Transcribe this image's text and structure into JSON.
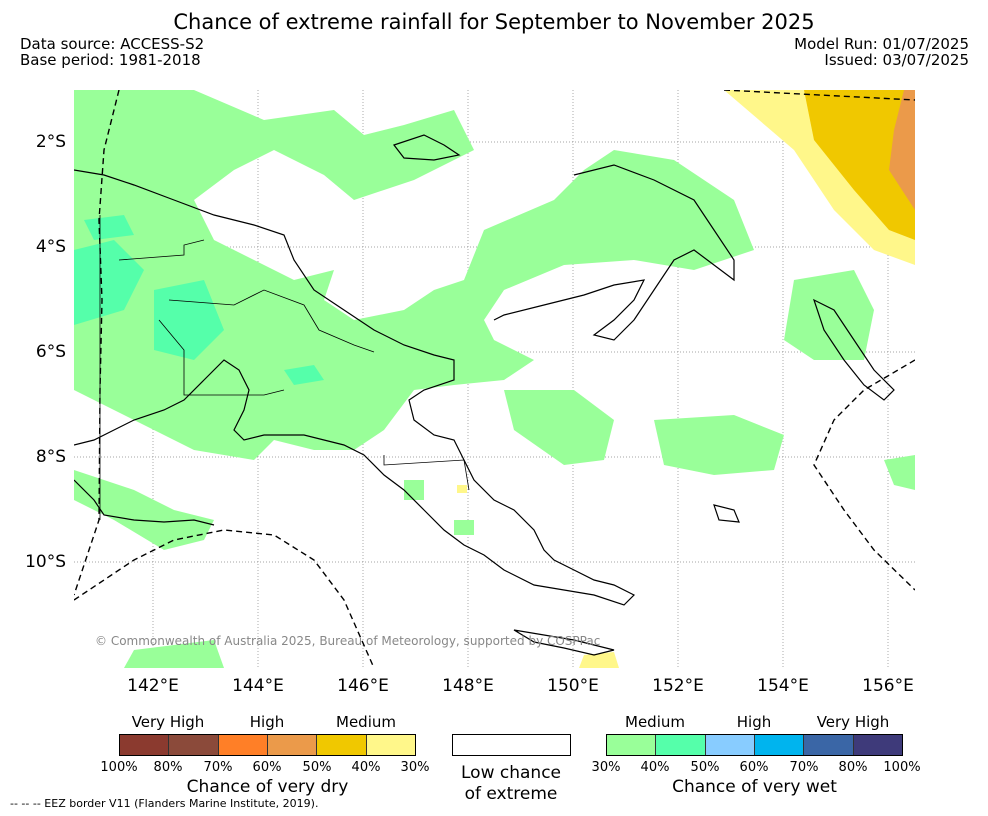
{
  "title": "Chance of extreme rainfall for September to November 2025",
  "data_source": "Data source: ACCESS-S2",
  "base_period": "Base period: 1981-2018",
  "model_run": "Model Run: 01/07/2025",
  "issued": "Issued: 03/07/2025",
  "copyright": "© Commonwealth of Australia 2025, Bureau of Meteorology, supported by COSPPac",
  "lat_labels": [
    "2°S",
    "4°S",
    "6°S",
    "8°S",
    "10°S"
  ],
  "lon_labels": [
    "142°E",
    "144°E",
    "146°E",
    "148°E",
    "150°E",
    "152°E",
    "154°E",
    "156°E"
  ],
  "legend": {
    "dry": {
      "group_labels": [
        "Very High",
        "High",
        "Medium"
      ],
      "colors": [
        "#8b3a2f",
        "#8b4a3a",
        "#ff7f27",
        "#eb9a4a",
        "#f0c800",
        "#fff78a"
      ],
      "ticks": [
        "100%",
        "80%",
        "70%",
        "60%",
        "50%",
        "40%",
        "30%"
      ],
      "title": "Chance of very dry"
    },
    "low": {
      "line1": "Low chance",
      "line2": "of extreme"
    },
    "wet": {
      "group_labels": [
        "Medium",
        "High",
        "Very High"
      ],
      "colors": [
        "#99ff99",
        "#55ffaa",
        "#88ccff",
        "#00b4ee",
        "#3a66a6",
        "#3e3a7a"
      ],
      "ticks": [
        "30%",
        "40%",
        "50%",
        "60%",
        "70%",
        "80%",
        "100%"
      ],
      "title": "Chance of very wet"
    }
  },
  "footnote": "-- -- -- EEZ border V11 (Flanders Marine Institute, 2019)."
}
